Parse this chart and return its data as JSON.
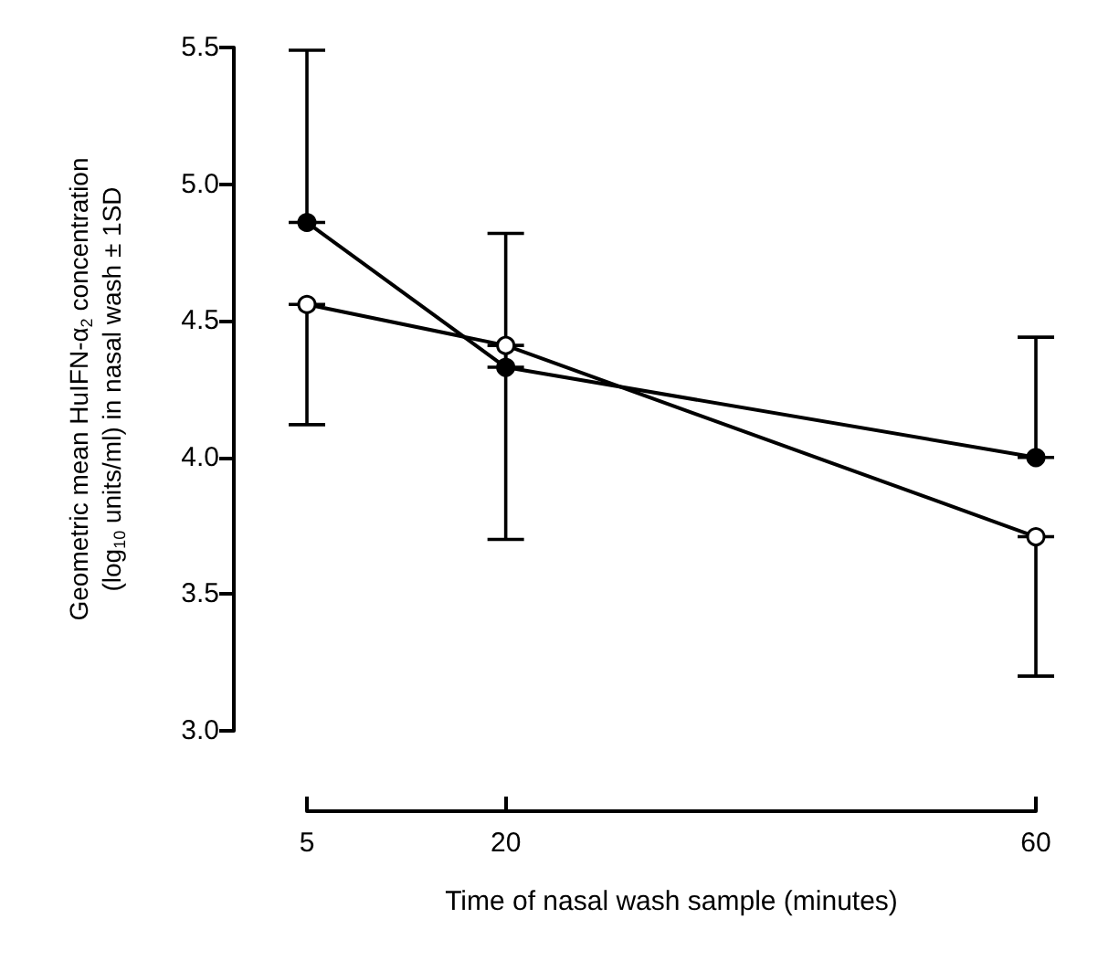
{
  "chart_data": {
    "type": "line",
    "xlabel": "Time of nasal wash sample (minutes)",
    "ylabel": "Geometric mean HuIFN-α$_{2}$ concentration\n(log$_{10}$ units/ml) in nasal wash ± 1SD",
    "x": [
      5,
      20,
      60
    ],
    "xlim": [
      5,
      60
    ],
    "xticks": [
      5,
      20,
      60
    ],
    "ylim": [
      3,
      5.5
    ],
    "yticks": [
      {
        "value": 3,
        "label": "3.0"
      },
      3.5,
      {
        "value": 4,
        "label": "4.0"
      },
      4.5,
      {
        "value": 5,
        "label": "5.0"
      },
      5.5
    ],
    "grid": false,
    "marker": "circle",
    "line_style": "solid",
    "series": [
      {
        "color": "#000000",
        "values": [
          4.86,
          4.33,
          4.0
        ],
        "errors": [
          [
            4.86,
            5.49
          ],
          [
            4.33,
            4.82
          ],
          [
            4.0,
            4.44
          ]
        ]
      },
      {
        "color": "#000000",
        "values": [
          4.56,
          4.41,
          3.71
        ],
        "errors": [
          [
            4.12,
            4.56
          ],
          [
            3.7,
            4.41
          ],
          [
            3.2,
            3.71
          ]
        ]
      }
    ]
  }
}
